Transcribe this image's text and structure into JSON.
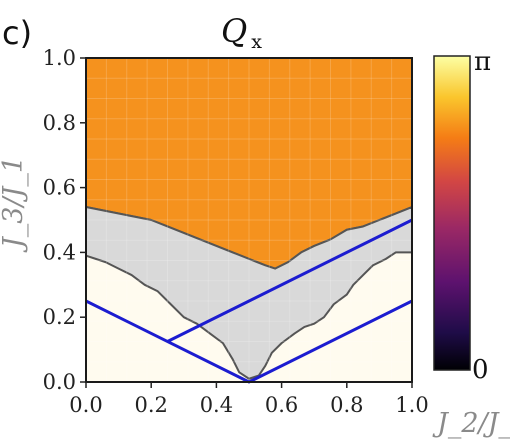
{
  "panel_label": "c)",
  "title": {
    "main": "Q",
    "sub": "x"
  },
  "chart_data": {
    "type": "heatmap",
    "title": "Q_x",
    "xlabel": "J_2/J_1",
    "ylabel": "J_3/J_1",
    "xlim": [
      0,
      1
    ],
    "ylim": [
      0,
      1
    ],
    "xticks": [
      0.0,
      0.2,
      0.4,
      0.6,
      0.8,
      1.0
    ],
    "yticks": [
      0.0,
      0.2,
      0.4,
      0.6,
      0.8,
      1.0
    ],
    "xtick_labels": [
      "0.0",
      "0.2",
      "0.4",
      "0.6",
      "0.8",
      "1.0"
    ],
    "ytick_labels": [
      "0.0",
      "0.2",
      "0.4",
      "0.6",
      "0.8",
      "1.0"
    ],
    "colorbar": {
      "min_label": "0",
      "max_label": "π",
      "range": [
        0,
        3.14159
      ]
    },
    "regions": [
      {
        "name": "orange",
        "value": 2.2,
        "color": "#f5921e",
        "boundary": [
          [
            0,
            1
          ],
          [
            1,
            1
          ],
          [
            1,
            0.54
          ],
          [
            0.95,
            0.52
          ],
          [
            0.9,
            0.5
          ],
          [
            0.85,
            0.48
          ],
          [
            0.8,
            0.47
          ],
          [
            0.75,
            0.44
          ],
          [
            0.7,
            0.42
          ],
          [
            0.66,
            0.4
          ],
          [
            0.62,
            0.37
          ],
          [
            0.58,
            0.35
          ],
          [
            0.55,
            0.36
          ],
          [
            0.5,
            0.38
          ],
          [
            0.45,
            0.4
          ],
          [
            0.4,
            0.42
          ],
          [
            0.35,
            0.44
          ],
          [
            0.3,
            0.46
          ],
          [
            0.25,
            0.48
          ],
          [
            0.2,
            0.5
          ],
          [
            0.15,
            0.51
          ],
          [
            0.1,
            0.52
          ],
          [
            0.05,
            0.53
          ],
          [
            0,
            0.54
          ]
        ]
      },
      {
        "name": "gray",
        "value": null,
        "color": "#d9d9d9",
        "boundary": [
          [
            0,
            0.54
          ],
          [
            0.05,
            0.53
          ],
          [
            0.1,
            0.52
          ],
          [
            0.15,
            0.51
          ],
          [
            0.2,
            0.5
          ],
          [
            0.25,
            0.48
          ],
          [
            0.3,
            0.46
          ],
          [
            0.35,
            0.44
          ],
          [
            0.4,
            0.42
          ],
          [
            0.45,
            0.4
          ],
          [
            0.5,
            0.38
          ],
          [
            0.55,
            0.36
          ],
          [
            0.58,
            0.35
          ],
          [
            0.62,
            0.37
          ],
          [
            0.66,
            0.4
          ],
          [
            0.7,
            0.42
          ],
          [
            0.75,
            0.44
          ],
          [
            0.8,
            0.47
          ],
          [
            0.85,
            0.48
          ],
          [
            0.9,
            0.5
          ],
          [
            0.95,
            0.52
          ],
          [
            1,
            0.54
          ],
          [
            1,
            0.4
          ],
          [
            0.95,
            0.4
          ],
          [
            0.92,
            0.38
          ],
          [
            0.88,
            0.36
          ],
          [
            0.85,
            0.33
          ],
          [
            0.82,
            0.3
          ],
          [
            0.8,
            0.27
          ],
          [
            0.76,
            0.24
          ],
          [
            0.73,
            0.2
          ],
          [
            0.7,
            0.18
          ],
          [
            0.67,
            0.17
          ],
          [
            0.64,
            0.15
          ],
          [
            0.6,
            0.12
          ],
          [
            0.57,
            0.09
          ],
          [
            0.55,
            0.05
          ],
          [
            0.53,
            0.02
          ],
          [
            0.5,
            0.01
          ],
          [
            0.47,
            0.03
          ],
          [
            0.45,
            0.07
          ],
          [
            0.42,
            0.12
          ],
          [
            0.38,
            0.15
          ],
          [
            0.34,
            0.18
          ],
          [
            0.3,
            0.2
          ],
          [
            0.26,
            0.24
          ],
          [
            0.22,
            0.28
          ],
          [
            0.18,
            0.3
          ],
          [
            0.14,
            0.33
          ],
          [
            0.1,
            0.35
          ],
          [
            0.06,
            0.37
          ],
          [
            0.03,
            0.38
          ],
          [
            0,
            0.39
          ]
        ]
      },
      {
        "name": "white",
        "value": 3.14159,
        "color": "#fffbef",
        "boundary": "remainder"
      }
    ],
    "series": [
      {
        "type": "line",
        "color": "#1c1cd0",
        "x": [
          0.0,
          0.5,
          1.0
        ],
        "y": [
          0.25,
          0.0,
          0.25
        ]
      },
      {
        "type": "line",
        "color": "#1c1cd0",
        "x": [
          0.25,
          1.0
        ],
        "y": [
          0.125,
          0.5
        ]
      }
    ]
  }
}
